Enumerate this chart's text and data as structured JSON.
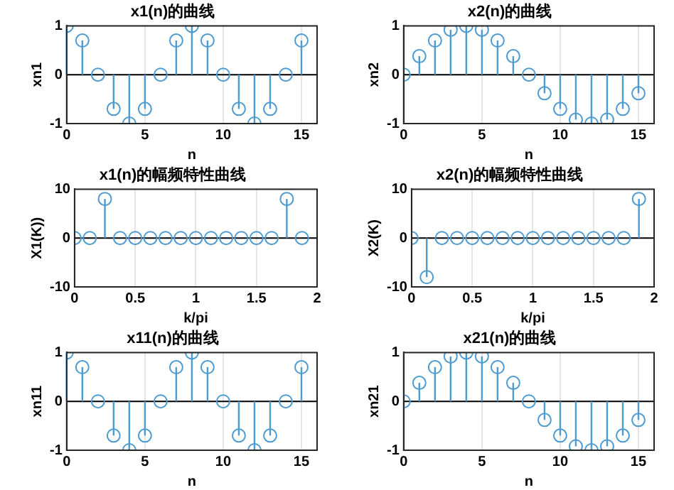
{
  "chart_data": [
    {
      "type": "lollipop",
      "title": "x1(n)的曲线",
      "xlabel": "n",
      "ylabel": "xn1",
      "x": [
        0,
        1,
        2,
        3,
        4,
        5,
        6,
        7,
        8,
        9,
        10,
        11,
        12,
        13,
        14,
        15
      ],
      "values": [
        1,
        0.7,
        0,
        -0.7,
        -1,
        -0.7,
        0,
        0.7,
        1,
        0.7,
        0,
        -0.7,
        -1,
        -0.7,
        0,
        0.7
      ],
      "color": "#4d9bd1",
      "xlim": [
        0,
        16
      ],
      "xticks": [
        0,
        5,
        10,
        15
      ],
      "ylim": [
        -1,
        1
      ],
      "yticks": [
        -1,
        0,
        1
      ],
      "grid": true,
      "marker": "circle"
    },
    {
      "type": "lollipop",
      "title": "x2(n)的曲线",
      "xlabel": "n",
      "ylabel": "xn2",
      "x": [
        0,
        1,
        2,
        3,
        4,
        5,
        6,
        7,
        8,
        9,
        10,
        11,
        12,
        13,
        14,
        15
      ],
      "values": [
        0,
        0.38,
        0.7,
        0.92,
        1,
        0.92,
        0.7,
        0.38,
        0,
        -0.38,
        -0.7,
        -0.92,
        -1,
        -0.92,
        -0.7,
        -0.38
      ],
      "color": "#4d9bd1",
      "xlim": [
        0,
        16
      ],
      "xticks": [
        0,
        5,
        10,
        15
      ],
      "ylim": [
        -1,
        1
      ],
      "yticks": [
        -1,
        0,
        1
      ],
      "grid": true,
      "marker": "circle"
    },
    {
      "type": "lollipop",
      "title": "x1(n)的幅频特性曲线",
      "xlabel": "k/pi",
      "ylabel": "X1(K))",
      "x": [
        0,
        0.125,
        0.25,
        0.375,
        0.5,
        0.625,
        0.75,
        0.875,
        1,
        1.125,
        1.25,
        1.375,
        1.5,
        1.625,
        1.75,
        1.875
      ],
      "values": [
        0,
        0,
        8,
        0,
        0,
        0,
        0,
        0,
        0,
        0,
        0,
        0,
        0,
        0,
        8,
        0
      ],
      "color": "#4d9bd1",
      "xlim": [
        0,
        2
      ],
      "xticks": [
        0,
        0.5,
        1,
        1.5,
        2
      ],
      "ylim": [
        -10,
        10
      ],
      "yticks": [
        -10,
        0,
        10
      ],
      "grid": true,
      "marker": "circle"
    },
    {
      "type": "lollipop",
      "title": "x2(n)的幅频特性曲线",
      "xlabel": "k/pi",
      "ylabel": "X2(K)",
      "x": [
        0,
        0.125,
        0.25,
        0.375,
        0.5,
        0.625,
        0.75,
        0.875,
        1,
        1.125,
        1.25,
        1.375,
        1.5,
        1.625,
        1.75,
        1.875
      ],
      "values": [
        0,
        -8,
        0,
        0,
        0,
        0,
        0,
        0,
        0,
        0,
        0,
        0,
        0,
        0,
        0,
        8
      ],
      "color": "#4d9bd1",
      "xlim": [
        0,
        2
      ],
      "xticks": [
        0,
        0.5,
        1,
        1.5,
        2
      ],
      "ylim": [
        -10,
        10
      ],
      "yticks": [
        -10,
        0,
        10
      ],
      "grid": true,
      "marker": "circle"
    },
    {
      "type": "lollipop",
      "title": "x11(n)的曲线",
      "xlabel": "n",
      "ylabel": "xn11",
      "x": [
        0,
        1,
        2,
        3,
        4,
        5,
        6,
        7,
        8,
        9,
        10,
        11,
        12,
        13,
        14,
        15
      ],
      "values": [
        1,
        0.7,
        0,
        -0.7,
        -1,
        -0.7,
        0,
        0.7,
        1,
        0.7,
        0,
        -0.7,
        -1,
        -0.7,
        0,
        0.7
      ],
      "color": "#4d9bd1",
      "xlim": [
        0,
        16
      ],
      "xticks": [
        0,
        5,
        10,
        15
      ],
      "ylim": [
        -1,
        1
      ],
      "yticks": [
        -1,
        0,
        1
      ],
      "grid": true,
      "marker": "circle"
    },
    {
      "type": "lollipop",
      "title": "x21(n)的曲线",
      "xlabel": "n",
      "ylabel": "xn21",
      "x": [
        0,
        1,
        2,
        3,
        4,
        5,
        6,
        7,
        8,
        9,
        10,
        11,
        12,
        13,
        14,
        15
      ],
      "values": [
        0,
        0.38,
        0.7,
        0.92,
        1,
        0.92,
        0.7,
        0.38,
        0,
        -0.38,
        -0.7,
        -0.92,
        -1,
        -0.92,
        -0.7,
        -0.38
      ],
      "color": "#4d9bd1",
      "xlim": [
        0,
        16
      ],
      "xticks": [
        0,
        5,
        10,
        15
      ],
      "ylim": [
        -1,
        1
      ],
      "yticks": [
        -1,
        0,
        1
      ],
      "grid": true,
      "marker": "circle"
    }
  ]
}
